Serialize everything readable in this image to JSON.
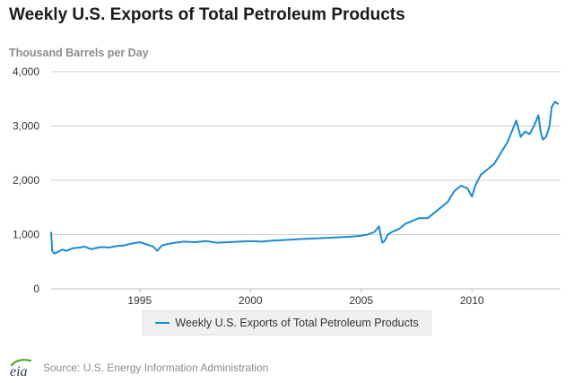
{
  "title": "Weekly U.S. Exports of Total Petroleum Products",
  "logo": {
    "text": "eia"
  },
  "source": "Source: U.S. Energy Information Administration",
  "colors": {
    "series": "#1b8bcf",
    "grid": "#d0d0d0",
    "axis_text": "#333333",
    "logo_green": "#5aa632"
  },
  "chart_data": {
    "type": "line",
    "title": "Weekly U.S. Exports of Total Petroleum Products",
    "ylabel": "Thousand Barrels per Day",
    "xlabel": "",
    "xlim": [
      1991.0,
      2014.0
    ],
    "ylim": [
      0,
      4000
    ],
    "x_ticks": [
      1995,
      2000,
      2005,
      2010
    ],
    "y_ticks": [
      0,
      1000,
      2000,
      3000,
      4000
    ],
    "y_tick_labels": [
      "0",
      "1,000",
      "2,000",
      "3,000",
      "4,000"
    ],
    "grid": "horizontal",
    "legend_position": "bottom-center",
    "series": [
      {
        "name": "Weekly U.S. Exports of Total Petroleum Products",
        "color": "#1b8bcf",
        "x": [
          1991.0,
          1991.05,
          1991.15,
          1991.3,
          1991.5,
          1991.7,
          1992.0,
          1992.3,
          1992.5,
          1992.8,
          1993.0,
          1993.3,
          1993.6,
          1994.0,
          1994.3,
          1994.6,
          1995.0,
          1995.3,
          1995.6,
          1995.8,
          1996.0,
          1996.3,
          1996.6,
          1997.0,
          1997.5,
          1998.0,
          1998.5,
          1999.0,
          1999.5,
          2000.0,
          2000.5,
          2001.0,
          2001.5,
          2002.0,
          2002.5,
          2003.0,
          2003.5,
          2004.0,
          2004.5,
          2005.0,
          2005.3,
          2005.6,
          2005.8,
          2005.95,
          2006.05,
          2006.2,
          2006.4,
          2006.7,
          2007.0,
          2007.3,
          2007.6,
          2008.0,
          2008.3,
          2008.6,
          2008.9,
          2009.2,
          2009.5,
          2009.8,
          2010.0,
          2010.15,
          2010.4,
          2010.7,
          2011.0,
          2011.3,
          2011.6,
          2011.8,
          2012.0,
          2012.2,
          2012.4,
          2012.6,
          2012.8,
          2013.0,
          2013.1,
          2013.2,
          2013.35,
          2013.5,
          2013.6,
          2013.75,
          2013.9
        ],
        "values": [
          1050,
          700,
          650,
          680,
          720,
          700,
          750,
          760,
          780,
          730,
          750,
          770,
          760,
          790,
          800,
          830,
          860,
          820,
          780,
          700,
          800,
          830,
          850,
          870,
          860,
          880,
          850,
          860,
          870,
          880,
          870,
          890,
          900,
          910,
          920,
          930,
          940,
          950,
          960,
          980,
          1000,
          1050,
          1150,
          850,
          880,
          1000,
          1050,
          1100,
          1200,
          1250,
          1300,
          1300,
          1400,
          1500,
          1600,
          1800,
          1900,
          1850,
          1700,
          1900,
          2100,
          2200,
          2300,
          2500,
          2700,
          2900,
          3100,
          2800,
          2900,
          2850,
          3000,
          3200,
          2900,
          2750,
          2800,
          3000,
          3350,
          3450,
          3400
        ]
      }
    ]
  }
}
